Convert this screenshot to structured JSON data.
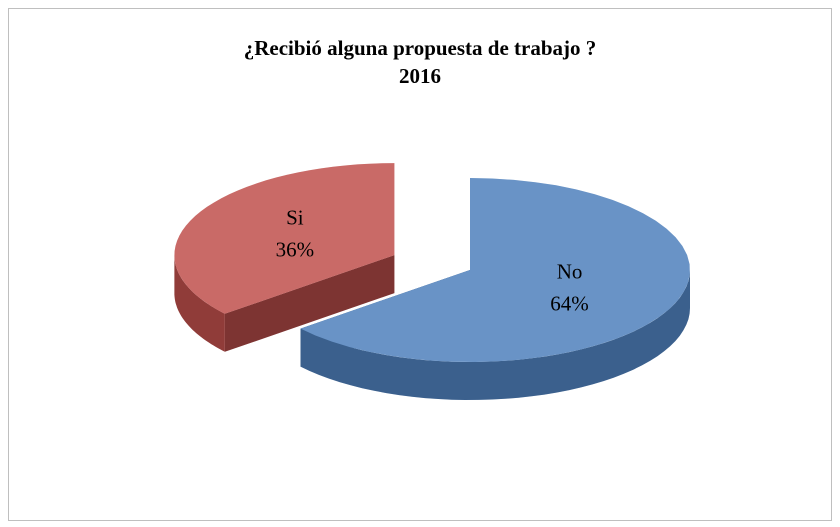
{
  "chart_data": {
    "type": "pie3d",
    "title": "¿Recibió alguna propuesta de trabajo ?",
    "subtitle": "2016",
    "categories": [
      "No",
      "Si"
    ],
    "values": [
      64,
      36
    ],
    "value_labels": [
      "64%",
      "36%"
    ],
    "colors": [
      "#4f81bd",
      "#c0504d"
    ],
    "exploded": [
      false,
      true
    ]
  }
}
